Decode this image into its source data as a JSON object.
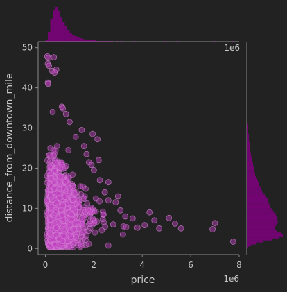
{
  "chart_data": {
    "type": "scatter",
    "title": "",
    "xlabel": "price",
    "ylabel": "distance_from_downtown_mile",
    "x_offset_label": "1e6",
    "x_ticks": [
      0,
      2,
      4,
      6,
      8
    ],
    "y_ticks": [
      0,
      10,
      20,
      30,
      40,
      50
    ],
    "xlim": [
      -0.3,
      8.0
    ],
    "ylim": [
      -1.5,
      51.5
    ],
    "x_units": "millions (×1e6)",
    "grid": false,
    "legend": "none",
    "marker_color": "#bf40bf",
    "marker_edge": "#d98ad9",
    "hist_color": "#800080",
    "background": "#222222",
    "axis_color": "#8a8a8a",
    "text_color": "#c8c8c8",
    "points": [
      [
        0.08,
        47.8
      ],
      [
        0.12,
        47.4
      ],
      [
        0.35,
        47.6
      ],
      [
        0.1,
        46.0
      ],
      [
        0.15,
        45.5
      ],
      [
        0.28,
        44.2
      ],
      [
        0.45,
        44.5
      ],
      [
        0.38,
        43.8
      ],
      [
        0.1,
        41.3
      ],
      [
        0.12,
        41.0
      ],
      [
        0.68,
        35.3
      ],
      [
        0.72,
        34.9
      ],
      [
        0.3,
        34.0
      ],
      [
        0.85,
        33.5
      ],
      [
        1.0,
        31.5
      ],
      [
        1.5,
        29.5
      ],
      [
        1.25,
        27.8
      ],
      [
        1.95,
        28.5
      ],
      [
        2.15,
        27.2
      ],
      [
        1.6,
        25.5
      ],
      [
        1.8,
        21.5
      ],
      [
        1.9,
        20.8
      ],
      [
        2.0,
        19.5
      ],
      [
        2.25,
        17.0
      ],
      [
        2.45,
        14.0
      ],
      [
        2.6,
        12.0
      ],
      [
        2.9,
        11.5
      ],
      [
        3.1,
        9.5
      ],
      [
        3.3,
        8.0
      ],
      [
        3.6,
        7.5
      ],
      [
        3.8,
        5.2
      ],
      [
        4.1,
        5.8
      ],
      [
        4.5,
        7.0
      ],
      [
        4.3,
        9.0
      ],
      [
        4.7,
        5.0
      ],
      [
        5.1,
        7.6
      ],
      [
        5.35,
        6.2
      ],
      [
        5.6,
        5.0
      ],
      [
        6.9,
        4.8
      ],
      [
        7.0,
        6.3
      ],
      [
        7.75,
        1.7
      ],
      [
        3.2,
        3.5
      ],
      [
        2.8,
        6.0
      ],
      [
        2.4,
        8.5
      ],
      [
        3.0,
        13.0
      ],
      [
        2.2,
        22.0
      ],
      [
        1.7,
        23.5
      ],
      [
        2.6,
        16.5
      ]
    ],
    "dense_cloud": {
      "x_mean": 0.55,
      "x_sd": 0.55,
      "x_min": 0.05,
      "x_max": 3.5,
      "y_center": 8.0,
      "y_sd": 5.5,
      "y_min": 0.3,
      "y_max": 33,
      "n": 2400
    },
    "y_marginal": {
      "bins_start": 0,
      "bin_width": 0.5,
      "counts": [
        2,
        6,
        14,
        24,
        36,
        46,
        52,
        50,
        44,
        40,
        40,
        42,
        44,
        45,
        44,
        44,
        42,
        40,
        38,
        36,
        34,
        34,
        32,
        30,
        30,
        28,
        26,
        24,
        22,
        20,
        20,
        18,
        17,
        16,
        15,
        14,
        12,
        12,
        11,
        10,
        10,
        9,
        9,
        8,
        7,
        7,
        6,
        6,
        5,
        5,
        4,
        4,
        4,
        3,
        3,
        3,
        3,
        2,
        2,
        2,
        2,
        2,
        1,
        1,
        1,
        1,
        1
      ]
    },
    "x_marginal": {
      "bins_start": 0.0,
      "bin_width": 0.1,
      "counts": [
        3,
        14,
        32,
        46,
        50,
        44,
        36,
        28,
        22,
        17,
        13,
        10,
        8,
        6,
        5,
        4,
        3,
        3,
        2,
        2,
        2,
        1,
        1,
        1,
        1,
        1,
        1,
        1,
        0,
        1,
        0,
        1,
        0,
        0,
        0,
        0,
        1,
        0,
        0,
        0,
        0,
        0,
        0,
        0,
        0,
        0,
        0,
        0,
        0,
        1,
        0,
        0,
        0,
        0,
        1,
        0,
        0,
        0,
        0,
        0,
        0,
        0,
        0,
        0,
        0,
        0,
        0,
        0,
        0,
        1,
        0,
        0,
        0,
        0,
        0,
        0,
        0,
        1
      ]
    }
  }
}
